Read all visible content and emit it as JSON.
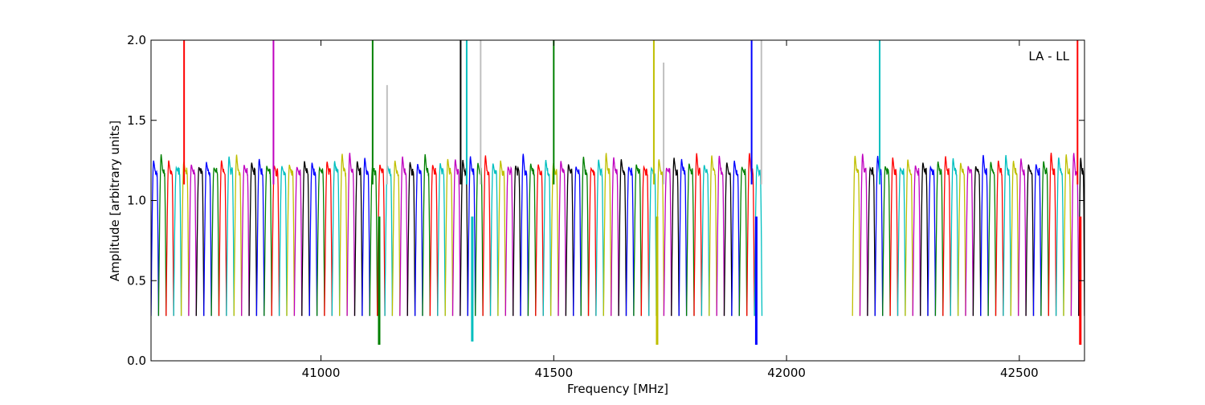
{
  "chart_data": {
    "type": "line",
    "annotation": "LA - LL",
    "xlabel": "Frequency [MHz]",
    "ylabel": "Amplitude [arbitrary units]",
    "xlim": [
      40635,
      42640
    ],
    "ylim": [
      0.0,
      2.0
    ],
    "x_ticks": [
      41000,
      41500,
      42000,
      42500
    ],
    "x_tick_labels": [
      "41000",
      "41500",
      "42000",
      "42500"
    ],
    "y_ticks": [
      0.0,
      0.5,
      1.0,
      1.5,
      2.0
    ],
    "y_tick_labels": [
      "0.0",
      "0.5",
      "1.0",
      "1.5",
      "2.0"
    ],
    "grid": false,
    "color_cycle": [
      "#0000ff",
      "#008000",
      "#ff0000",
      "#00bfbf",
      "#bfbf00",
      "#bf00bf",
      "#000000"
    ],
    "channel_start_mhz": 40635,
    "channel_width_mhz": 16.2,
    "channel_shape": {
      "edge_low": 0.28,
      "plateau": 1.18,
      "peak": 1.25
    },
    "gap_mhz": [
      41945,
      42130
    ],
    "spikes": [
      {
        "x": 40706,
        "y_top": 2.0,
        "color": "#ff0000"
      },
      {
        "x": 40898,
        "y_top": 2.0,
        "color": "#bf00bf"
      },
      {
        "x": 41111,
        "y_top": 2.0,
        "color": "#008000"
      },
      {
        "x": 41142,
        "y_top": 1.72,
        "color": "#c0c0c0"
      },
      {
        "x": 41300,
        "y_top": 2.0,
        "color": "#000000"
      },
      {
        "x": 41313,
        "y_top": 2.0,
        "color": "#00bfbf"
      },
      {
        "x": 41343,
        "y_top": 2.0,
        "color": "#c0c0c0"
      },
      {
        "x": 41500,
        "y_top": 2.0,
        "color": "#008000"
      },
      {
        "x": 41715,
        "y_top": 2.0,
        "color": "#bfbf00"
      },
      {
        "x": 41736,
        "y_top": 1.86,
        "color": "#c0c0c0"
      },
      {
        "x": 41925,
        "y_top": 2.0,
        "color": "#0000ff"
      },
      {
        "x": 41946,
        "y_top": 2.0,
        "color": "#c0c0c0"
      },
      {
        "x": 42200,
        "y_top": 2.0,
        "color": "#00bfbf"
      },
      {
        "x": 42625,
        "y_top": 2.0,
        "color": "#ff0000"
      }
    ],
    "dips": [
      {
        "x": 41125,
        "y": 0.1,
        "color": "#008000"
      },
      {
        "x": 41325,
        "y": 0.12,
        "color": "#00bfbf"
      },
      {
        "x": 41722,
        "y": 0.1,
        "color": "#bfbf00"
      },
      {
        "x": 41935,
        "y": 0.1,
        "color": "#0000ff"
      },
      {
        "x": 42631,
        "y": 0.1,
        "color": "#ff0000"
      }
    ]
  }
}
